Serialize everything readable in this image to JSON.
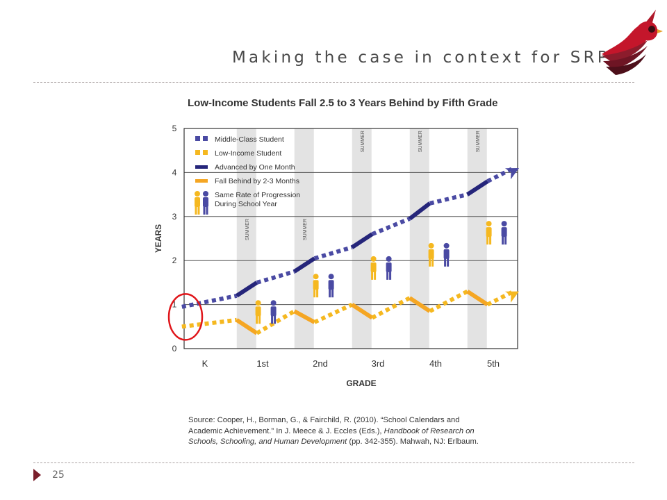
{
  "slide": {
    "title": "Making the case in context for SRP",
    "page_number": "25",
    "accent_color": "#7a1f2b",
    "logo_icon": "cardinal-bird-logo"
  },
  "chart_data": {
    "type": "line",
    "title": "Low-Income Students Fall 2.5 to 3 Years Behind by Fifth Grade",
    "xlabel": "GRADE",
    "ylabel": "YEARS",
    "categories": [
      "K",
      "1st",
      "2nd",
      "3rd",
      "4th",
      "5th"
    ],
    "ylim": [
      0,
      5
    ],
    "yticks": [
      0,
      1,
      2,
      3,
      4,
      5
    ],
    "grid": true,
    "summer_label": "SUMMER",
    "summer_after": [
      "K",
      "1st",
      "2nd",
      "3rd",
      "4th"
    ],
    "legend_position": "top-left",
    "legend": [
      {
        "label": "Middle-Class Student",
        "kind": "dashed-square",
        "color": "#4a4aa3"
      },
      {
        "label": "Low-Income Student",
        "kind": "dashed-square",
        "color": "#f5b820"
      },
      {
        "label": "Advanced by One Month",
        "kind": "solid-line",
        "color": "#25257a"
      },
      {
        "label": "Fall Behind by 2-3 Months",
        "kind": "solid-line",
        "color": "#f5a623"
      },
      {
        "label": "Same Rate of Progression During School Year",
        "kind": "figures"
      }
    ],
    "series": [
      {
        "name": "Middle-Class Student",
        "color": "#4a4aa3",
        "x": [
          -0.4,
          0.55,
          0.9,
          1.55,
          1.9,
          2.55,
          2.9,
          3.55,
          3.9,
          4.55,
          4.9,
          5.35
        ],
        "y": [
          0.95,
          1.2,
          1.5,
          1.75,
          2.05,
          2.3,
          2.6,
          2.95,
          3.3,
          3.5,
          3.8,
          4.1
        ],
        "summer_segments": [
          [
            1,
            2
          ],
          [
            3,
            4
          ],
          [
            5,
            6
          ],
          [
            7,
            8
          ],
          [
            9,
            10
          ]
        ]
      },
      {
        "name": "Low-Income Student",
        "color": "#f5b820",
        "x": [
          -0.4,
          0.55,
          0.9,
          1.55,
          1.9,
          2.55,
          2.9,
          3.55,
          3.9,
          4.55,
          4.9,
          5.35
        ],
        "y": [
          0.5,
          0.65,
          0.35,
          0.85,
          0.6,
          1.0,
          0.7,
          1.15,
          0.85,
          1.3,
          1.0,
          1.3
        ],
        "summer_segments": [
          [
            1,
            2
          ],
          [
            3,
            4
          ],
          [
            5,
            6
          ],
          [
            7,
            8
          ],
          [
            9,
            10
          ]
        ]
      }
    ],
    "figure_pairs": [
      {
        "grade_index": 0.2,
        "level": 1.1
      },
      {
        "grade_index": 1.2,
        "level": 1.7
      },
      {
        "grade_index": 2.2,
        "level": 2.1
      },
      {
        "grade_index": 3.2,
        "level": 2.4
      },
      {
        "grade_index": 4.2,
        "level": 2.9
      }
    ],
    "annotation": {
      "shape": "red-circle",
      "around": "K start, years 0.5-1.0",
      "color": "#e0161b"
    }
  },
  "source": {
    "line1": "Source: Cooper, H., Borman, G., & Fairchild, R. (2010). “School Calendars and",
    "line2a": "Academic Achievement.” In J. Meece & J. Eccles (Eds.), ",
    "line2b": "Handbook of Research on",
    "line3a": "Schools, Schooling, and Human Development",
    "line3b": " (pp. 342-355). Mahwah, NJ: Erlbaum."
  }
}
